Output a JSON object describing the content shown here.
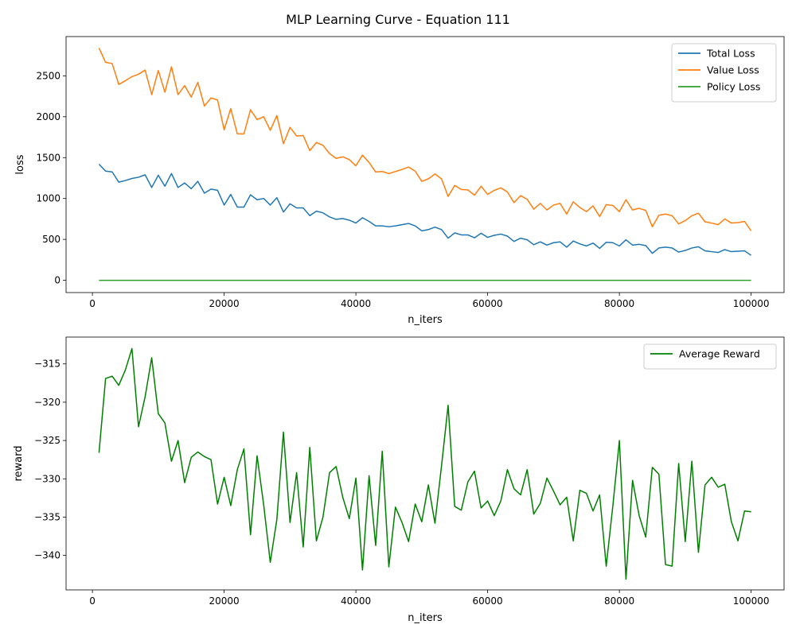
{
  "figure": {
    "title": "MLP Learning Curve - Equation 111"
  },
  "chart_data": [
    {
      "type": "line",
      "title": "",
      "xlabel": "n_iters",
      "ylabel": "loss",
      "xlim": [
        -4000,
        105000
      ],
      "ylim": [
        -150,
        2980
      ],
      "xticks": [
        0,
        20000,
        40000,
        60000,
        80000,
        100000
      ],
      "yticks": [
        0,
        500,
        1000,
        1500,
        2000,
        2500
      ],
      "legend_placement": "top-right",
      "grid": false,
      "x": [
        1000,
        2000,
        3000,
        4000,
        5000,
        6000,
        7000,
        8000,
        9000,
        10000,
        11000,
        12000,
        13000,
        14000,
        15000,
        16000,
        17000,
        18000,
        19000,
        20000,
        21000,
        22000,
        23000,
        24000,
        25000,
        26000,
        27000,
        28000,
        29000,
        30000,
        31000,
        32000,
        33000,
        34000,
        35000,
        36000,
        37000,
        38000,
        39000,
        40000,
        41000,
        42000,
        43000,
        44000,
        45000,
        46000,
        47000,
        48000,
        49000,
        50000,
        51000,
        52000,
        53000,
        54000,
        55000,
        56000,
        57000,
        58000,
        59000,
        60000,
        61000,
        62000,
        63000,
        64000,
        65000,
        66000,
        67000,
        68000,
        69000,
        70000,
        71000,
        72000,
        73000,
        74000,
        75000,
        76000,
        77000,
        78000,
        79000,
        80000,
        81000,
        82000,
        83000,
        84000,
        85000,
        86000,
        87000,
        88000,
        89000,
        90000,
        91000,
        92000,
        93000,
        94000,
        95000,
        96000,
        97000,
        98000,
        99000,
        100000
      ],
      "series": [
        {
          "name": "Total Loss",
          "color": "#1f77b4",
          "values": [
            1420,
            1335,
            1325,
            1200,
            1220,
            1245,
            1260,
            1290,
            1135,
            1285,
            1150,
            1305,
            1135,
            1190,
            1120,
            1210,
            1065,
            1115,
            1100,
            920,
            1050,
            895,
            895,
            1045,
            985,
            1000,
            920,
            1010,
            835,
            935,
            885,
            885,
            790,
            845,
            825,
            775,
            745,
            755,
            735,
            700,
            765,
            720,
            665,
            665,
            655,
            665,
            680,
            695,
            665,
            605,
            620,
            650,
            620,
            515,
            580,
            555,
            555,
            520,
            575,
            525,
            550,
            565,
            540,
            475,
            515,
            495,
            435,
            470,
            430,
            460,
            470,
            405,
            480,
            445,
            420,
            455,
            390,
            465,
            460,
            420,
            495,
            430,
            440,
            425,
            330,
            395,
            405,
            395,
            345,
            365,
            395,
            410,
            360,
            350,
            340,
            375,
            350,
            355,
            360,
            305
          ]
        },
        {
          "name": "Value Loss",
          "color": "#ff7f0e",
          "values": [
            2840,
            2665,
            2650,
            2395,
            2440,
            2490,
            2520,
            2570,
            2270,
            2565,
            2300,
            2610,
            2270,
            2380,
            2240,
            2420,
            2130,
            2230,
            2205,
            1840,
            2100,
            1790,
            1790,
            2085,
            1965,
            2000,
            1835,
            2015,
            1670,
            1870,
            1765,
            1770,
            1585,
            1685,
            1650,
            1550,
            1490,
            1510,
            1475,
            1400,
            1530,
            1440,
            1325,
            1330,
            1305,
            1330,
            1355,
            1385,
            1335,
            1210,
            1240,
            1300,
            1240,
            1025,
            1160,
            1110,
            1105,
            1040,
            1150,
            1050,
            1100,
            1130,
            1080,
            950,
            1035,
            990,
            870,
            940,
            860,
            920,
            940,
            810,
            960,
            890,
            840,
            910,
            780,
            925,
            915,
            840,
            985,
            860,
            880,
            855,
            655,
            795,
            810,
            790,
            690,
            730,
            790,
            820,
            715,
            700,
            680,
            750,
            700,
            705,
            720,
            605
          ]
        },
        {
          "name": "Policy Loss",
          "color": "#2ca02c",
          "values": [
            0,
            0,
            0,
            0,
            0,
            0,
            0,
            0,
            0,
            0,
            0,
            0,
            0,
            0,
            0,
            0,
            0,
            0,
            0,
            0,
            0,
            0,
            0,
            0,
            0,
            0,
            0,
            0,
            0,
            0,
            0,
            0,
            0,
            0,
            0,
            0,
            0,
            0,
            0,
            0,
            0,
            0,
            0,
            0,
            0,
            0,
            0,
            0,
            0,
            0,
            0,
            0,
            0,
            0,
            0,
            0,
            0,
            0,
            0,
            0,
            0,
            0,
            0,
            0,
            0,
            0,
            0,
            0,
            0,
            0,
            0,
            0,
            0,
            0,
            0,
            0,
            0,
            0,
            0,
            0,
            0,
            0,
            0,
            0,
            0,
            0,
            0,
            0,
            0,
            0,
            0,
            0,
            0,
            0,
            0,
            0,
            0,
            0,
            0,
            0
          ]
        }
      ]
    },
    {
      "type": "line",
      "title": "",
      "xlabel": "n_iters",
      "ylabel": "reward",
      "xlim": [
        -4000,
        105000
      ],
      "ylim": [
        -344.5,
        -311.5
      ],
      "xticks": [
        0,
        20000,
        40000,
        60000,
        80000,
        100000
      ],
      "yticks": [
        -315,
        -320,
        -325,
        -330,
        -335,
        -340
      ],
      "legend_placement": "top-right",
      "grid": false,
      "x": [
        1000,
        2000,
        3000,
        4000,
        5000,
        6000,
        7000,
        8000,
        9000,
        10000,
        11000,
        12000,
        13000,
        14000,
        15000,
        16000,
        17000,
        18000,
        19000,
        20000,
        21000,
        22000,
        23000,
        24000,
        25000,
        26000,
        27000,
        28000,
        29000,
        30000,
        31000,
        32000,
        33000,
        34000,
        35000,
        36000,
        37000,
        38000,
        39000,
        40000,
        41000,
        42000,
        43000,
        44000,
        45000,
        46000,
        47000,
        48000,
        49000,
        50000,
        51000,
        52000,
        53000,
        54000,
        55000,
        56000,
        57000,
        58000,
        59000,
        60000,
        61000,
        62000,
        63000,
        64000,
        65000,
        66000,
        67000,
        68000,
        69000,
        70000,
        71000,
        72000,
        73000,
        74000,
        75000,
        76000,
        77000,
        78000,
        79000,
        80000,
        81000,
        82000,
        83000,
        84000,
        85000,
        86000,
        87000,
        88000,
        89000,
        90000,
        91000,
        92000,
        93000,
        94000,
        95000,
        96000,
        97000,
        98000,
        99000,
        100000
      ],
      "series": [
        {
          "name": "Average Reward",
          "color": "#008000",
          "values": [
            -326.6,
            -316.9,
            -316.6,
            -317.8,
            -315.8,
            -313.0,
            -323.2,
            -319.3,
            -314.2,
            -321.5,
            -322.7,
            -327.7,
            -325.0,
            -330.5,
            -327.2,
            -326.5,
            -327.1,
            -327.5,
            -333.3,
            -329.8,
            -333.5,
            -328.8,
            -326.1,
            -337.3,
            -327.0,
            -333.4,
            -340.9,
            -335.3,
            -323.9,
            -335.7,
            -329.2,
            -338.9,
            -325.9,
            -338.1,
            -335.0,
            -329.2,
            -328.4,
            -332.4,
            -335.2,
            -329.9,
            -341.9,
            -329.6,
            -338.7,
            -326.4,
            -341.5,
            -333.7,
            -335.7,
            -338.2,
            -333.3,
            -335.6,
            -330.8,
            -335.8,
            -328.3,
            -320.4,
            -333.6,
            -334.1,
            -330.4,
            -329.0,
            -333.8,
            -332.9,
            -334.8,
            -332.9,
            -328.8,
            -331.3,
            -332.1,
            -328.8,
            -334.6,
            -333.2,
            -329.9,
            -331.6,
            -333.4,
            -332.4,
            -338.1,
            -331.5,
            -331.9,
            -334.2,
            -332.1,
            -341.4,
            -333.6,
            -325.0,
            -343.1,
            -330.2,
            -334.8,
            -337.6,
            -328.5,
            -329.4,
            -341.2,
            -341.4,
            -328.0,
            -338.2,
            -327.7,
            -339.6,
            -330.8,
            -329.8,
            -331.1,
            -330.7,
            -335.6,
            -338.1,
            -334.2,
            -334.3
          ]
        }
      ]
    }
  ]
}
